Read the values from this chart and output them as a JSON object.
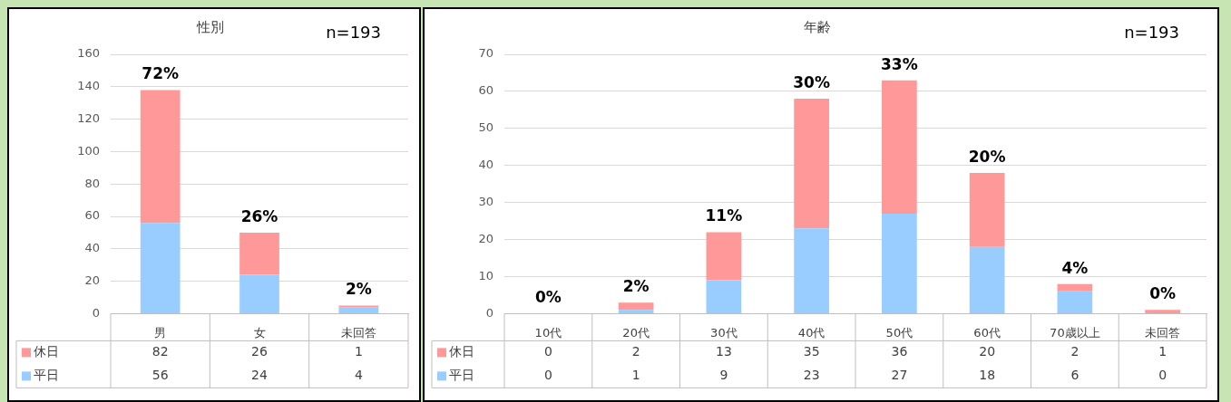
{
  "chart_data": [
    {
      "type": "bar",
      "title": "性別",
      "annotations": [
        "n=193",
        {
          "text": "72%",
          "x": "男",
          "y": 138
        },
        {
          "text": "26%",
          "x": "女",
          "y": 50
        },
        {
          "text": "2%",
          "x": "未回答",
          "y": 5
        }
      ],
      "categories": [
        "男",
        "女",
        "未回答"
      ],
      "stacked": true,
      "series": [
        {
          "name": "平日",
          "color": "#99ccff",
          "values": [
            56,
            24,
            4
          ]
        },
        {
          "name": "休日",
          "color": "#ff9999",
          "values": [
            82,
            26,
            1
          ]
        }
      ],
      "ylim": [
        0,
        160
      ],
      "yticks": [
        0,
        20,
        40,
        60,
        80,
        100,
        120,
        140,
        160
      ],
      "grid": "y",
      "legend": "bottom left",
      "data_labels": true
    },
    {
      "type": "bar",
      "title": "年齢",
      "annotations": [
        "n=193",
        {
          "text": "0%",
          "x": "10代",
          "y": 0
        },
        {
          "text": "2%",
          "x": "20代",
          "y": 3
        },
        {
          "text": "11%",
          "x": "30代",
          "y": 22
        },
        {
          "text": "30%",
          "x": "40代",
          "y": 58
        },
        {
          "text": "33%",
          "x": "50代",
          "y": 63
        },
        {
          "text": "20%",
          "x": "60代",
          "y": 38
        },
        {
          "text": "4%",
          "x": "70歳以上",
          "y": 8
        },
        {
          "text": "0%",
          "x": "未回答",
          "y": 1
        }
      ],
      "categories": [
        "10代",
        "20代",
        "30代",
        "40代",
        "50代",
        "60代",
        "70歳以上",
        "未回答"
      ],
      "stacked": true,
      "series": [
        {
          "name": "平日",
          "color": "#99ccff",
          "values": [
            0,
            1,
            9,
            23,
            27,
            18,
            6,
            0
          ]
        },
        {
          "name": "休日",
          "color": "#ff9999",
          "values": [
            0,
            2,
            13,
            35,
            36,
            20,
            2,
            1
          ]
        }
      ],
      "ylim": [
        0,
        70
      ],
      "yticks": [
        0,
        10,
        20,
        30,
        40,
        50,
        60,
        70
      ],
      "grid": "y",
      "legend": "bottom left",
      "data_labels": true
    }
  ]
}
